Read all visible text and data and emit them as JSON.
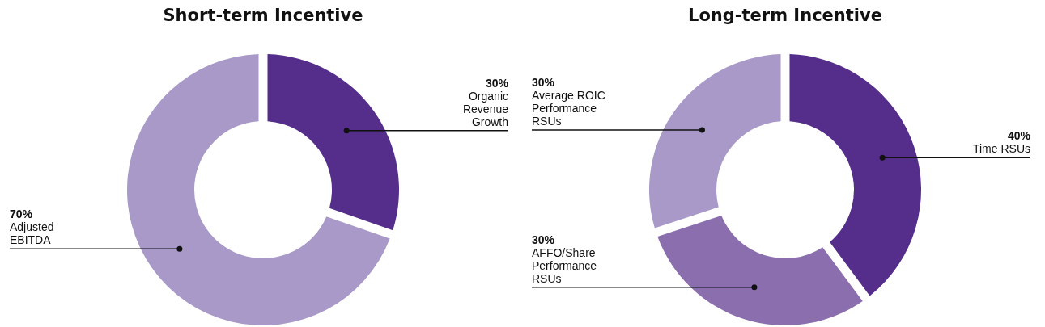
{
  "chart_data": [
    {
      "type": "donut",
      "title": "Short-term Incentive",
      "categories": [
        "Organic Revenue Growth",
        "Adjusted EBITDA"
      ],
      "values": [
        30,
        70
      ],
      "colors": [
        "#552d8a",
        "#a899c8"
      ],
      "value_labels": [
        "30%",
        "70%"
      ]
    },
    {
      "type": "donut",
      "title": "Long-term Incentive",
      "categories": [
        "Time RSUs",
        "AFFO/Share Performance RSUs",
        "Average ROIC Performance RSUs"
      ],
      "values": [
        40,
        30,
        30
      ],
      "colors": [
        "#552d8a",
        "#8a6eae",
        "#a899c8"
      ],
      "value_labels": [
        "40%",
        "30%",
        "30%"
      ]
    }
  ]
}
